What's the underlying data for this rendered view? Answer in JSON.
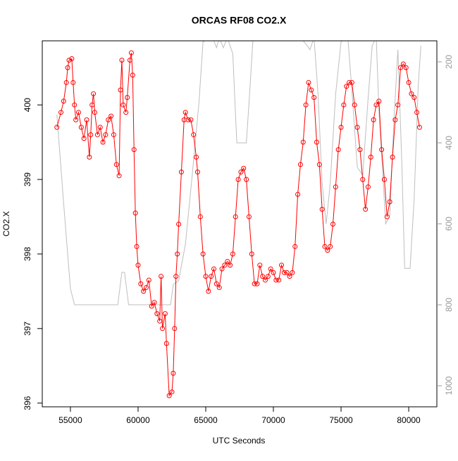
{
  "chart_data": {
    "type": "line",
    "title": "ORCAS RF08 CO2.X",
    "x_label": "UTC Seconds",
    "y_label": "CO2.X",
    "xlim": [
      52920,
      82080
    ],
    "xticks": [
      55000,
      60000,
      65000,
      70000,
      75000,
      80000
    ],
    "ylim": [
      395.95,
      400.86
    ],
    "yticks": [
      396,
      397,
      398,
      399,
      400
    ],
    "y2lim": [
      1052,
      148
    ],
    "y2ticks": [
      200,
      400,
      600,
      800,
      1000
    ],
    "series": [
      {
        "color": "#bebebe",
        "axis": "y2",
        "markers": false,
        "x": [
          54000,
          54500,
          55000,
          55300,
          58500,
          58800,
          59000,
          59300,
          62400,
          62600,
          63000,
          63500,
          64000,
          64500,
          64800,
          65500,
          65800,
          66000,
          66300,
          66600,
          67000,
          67200,
          67300,
          68000,
          68200,
          68500,
          69500,
          70000,
          71000,
          72000,
          72500,
          72700,
          73000,
          73300,
          73600,
          73900,
          74200,
          74600,
          75000,
          75500,
          75800,
          76200,
          76600,
          77000,
          77300,
          77600,
          77800,
          78300,
          78600,
          78900,
          79200,
          79500,
          79700,
          80100,
          80400,
          80700,
          80900
        ],
        "values": [
          330,
          550,
          760,
          800,
          800,
          720,
          720,
          800,
          800,
          750,
          740,
          650,
          480,
          300,
          150,
          140,
          165,
          140,
          165,
          140,
          180,
          330,
          400,
          400,
          300,
          140,
          140,
          130,
          140,
          140,
          160,
          170,
          140,
          280,
          500,
          600,
          500,
          280,
          150,
          140,
          270,
          460,
          480,
          290,
          160,
          140,
          320,
          600,
          580,
          350,
          170,
          460,
          710,
          710,
          540,
          260,
          160
        ]
      },
      {
        "color": "#ff0000",
        "markers": true,
        "x": [
          54000,
          54300,
          54500,
          54700,
          54800,
          54900,
          55100,
          55200,
          55300,
          55400,
          55600,
          55800,
          56000,
          56200,
          56400,
          56500,
          56600,
          56700,
          56800,
          57000,
          57200,
          57400,
          57600,
          57800,
          58000,
          58200,
          58400,
          58600,
          58700,
          58800,
          58900,
          59100,
          59200,
          59400,
          59500,
          59600,
          59700,
          59800,
          59900,
          60000,
          60200,
          60400,
          60600,
          60800,
          61000,
          61200,
          61400,
          61600,
          61700,
          61800,
          62000,
          62100,
          62300,
          62500,
          62600,
          62700,
          62800,
          62900,
          63000,
          63200,
          63400,
          63500,
          63700,
          63900,
          64100,
          64300,
          64400,
          64600,
          64800,
          65000,
          65200,
          65400,
          65600,
          65800,
          66000,
          66200,
          66400,
          66600,
          66800,
          67000,
          67200,
          67400,
          67600,
          67800,
          68000,
          68200,
          68400,
          68600,
          68800,
          69000,
          69200,
          69400,
          69600,
          69800,
          70000,
          70200,
          70400,
          70600,
          70800,
          71000,
          71200,
          71400,
          71600,
          71800,
          72000,
          72200,
          72400,
          72600,
          72800,
          73000,
          73200,
          73400,
          73600,
          73800,
          74000,
          74200,
          74400,
          74600,
          74800,
          75000,
          75200,
          75400,
          75600,
          75800,
          76000,
          76200,
          76400,
          76600,
          76800,
          77000,
          77200,
          77400,
          77600,
          77800,
          78000,
          78200,
          78400,
          78600,
          78800,
          79000,
          79200,
          79400,
          79600,
          79800,
          80000,
          80200,
          80400,
          80600,
          80800
        ],
        "values": [
          399.7,
          399.9,
          400.05,
          400.3,
          400.5,
          400.6,
          400.62,
          400.3,
          400.0,
          399.8,
          399.9,
          399.7,
          399.55,
          399.8,
          399.3,
          399.6,
          400.0,
          400.15,
          399.9,
          399.6,
          399.7,
          399.5,
          399.6,
          399.8,
          399.85,
          399.6,
          399.2,
          399.05,
          400.2,
          400.6,
          400.0,
          399.9,
          400.1,
          400.6,
          400.7,
          400.4,
          399.4,
          398.55,
          398.1,
          397.85,
          397.6,
          397.5,
          397.55,
          397.65,
          397.3,
          397.35,
          397.2,
          397.1,
          397.7,
          397.0,
          397.2,
          396.8,
          396.1,
          396.15,
          396.4,
          397.0,
          397.7,
          398.0,
          398.4,
          399.1,
          399.8,
          399.9,
          399.8,
          399.8,
          399.6,
          399.3,
          399.1,
          398.5,
          398.0,
          397.7,
          397.5,
          397.7,
          397.8,
          397.6,
          397.55,
          397.8,
          397.85,
          397.9,
          397.85,
          398.0,
          398.5,
          399.0,
          399.1,
          399.15,
          399.0,
          398.5,
          398.0,
          397.6,
          397.6,
          397.85,
          397.7,
          397.65,
          397.7,
          397.8,
          397.75,
          397.65,
          397.65,
          397.85,
          397.75,
          397.75,
          397.7,
          397.75,
          398.1,
          398.8,
          399.2,
          399.5,
          400.0,
          400.3,
          400.2,
          400.1,
          399.5,
          399.2,
          398.6,
          398.1,
          398.05,
          398.1,
          398.4,
          398.9,
          399.4,
          399.7,
          400.0,
          400.25,
          400.3,
          400.3,
          400.0,
          399.7,
          399.4,
          399.0,
          398.6,
          398.9,
          399.3,
          399.8,
          400.0,
          400.05,
          399.4,
          399.0,
          398.5,
          398.7,
          399.3,
          399.8,
          400.0,
          400.5,
          400.55,
          400.5,
          400.3,
          400.15,
          400.1,
          399.9,
          399.7
        ]
      }
    ]
  }
}
